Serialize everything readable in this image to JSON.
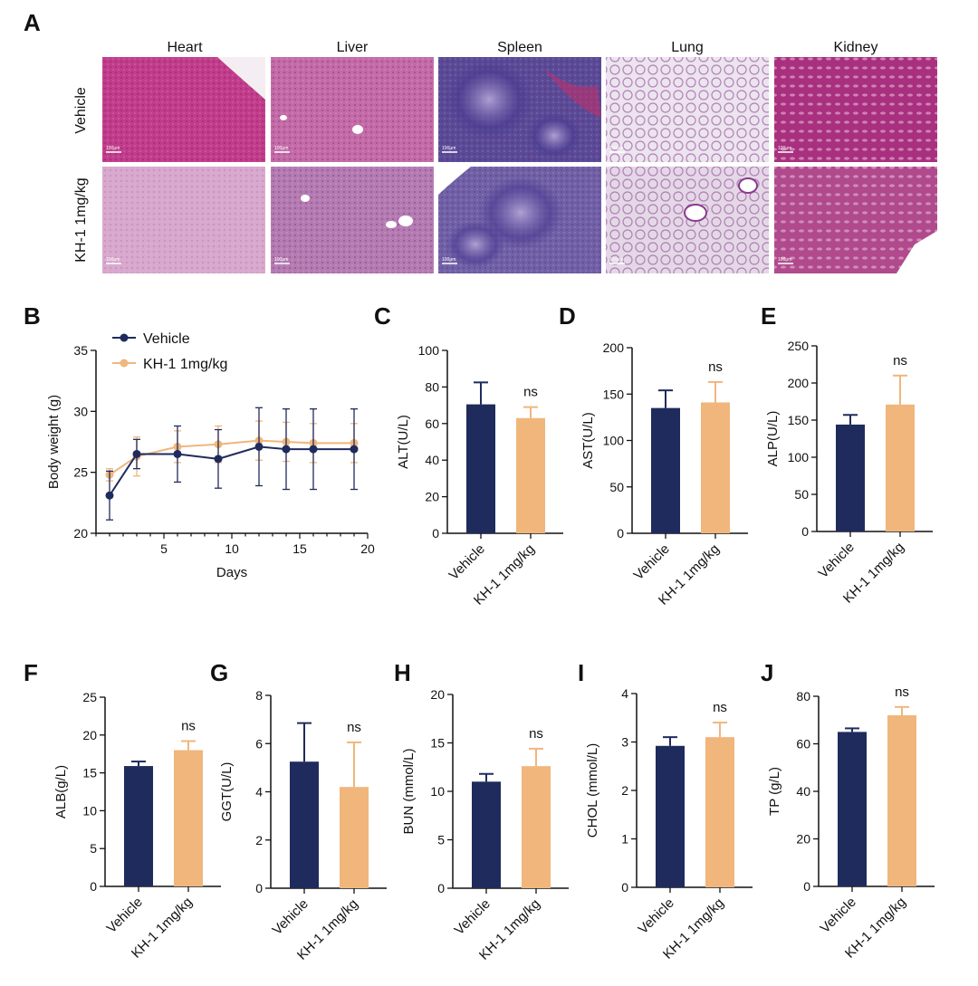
{
  "panel_labels": [
    "A",
    "B",
    "C",
    "D",
    "E",
    "F",
    "G",
    "H",
    "I",
    "J"
  ],
  "histology": {
    "columns": [
      "Heart",
      "Liver",
      "Spleen",
      "Lung",
      "Kidney"
    ],
    "rows": [
      "Vehicle",
      "KH-1 1mg/kg"
    ],
    "scale_bar": "100μm",
    "tile_colors": {
      "Heart": [
        "#c23c8c",
        "#d9a8cf"
      ],
      "Liver": [
        "#c46aa8",
        "#b47ab2"
      ],
      "Spleen": [
        "#5a4a98",
        "#7060a8"
      ],
      "Lung": [
        "#ece4ee",
        "#e4d8e6"
      ],
      "Kidney": [
        "#a8307e",
        "#b04a8c"
      ]
    }
  },
  "colors": {
    "vehicle": "#1f2b5c",
    "kh1": "#f0b67c"
  },
  "chart_data": [
    {
      "id": "B",
      "type": "line",
      "xlabel": "Days",
      "ylabel": "Body weight (g)",
      "xlim": [
        0,
        20
      ],
      "ylim": [
        20,
        35
      ],
      "xticks": [
        5,
        10,
        15,
        20
      ],
      "yticks": [
        20,
        25,
        30,
        35
      ],
      "x": [
        1,
        3,
        6,
        9,
        12,
        14,
        16,
        19
      ],
      "series": [
        {
          "name": "Vehicle",
          "values": [
            23.1,
            26.5,
            26.5,
            26.1,
            27.1,
            26.9,
            26.9,
            26.9
          ],
          "errors": [
            2.0,
            1.2,
            2.3,
            2.4,
            3.2,
            3.3,
            3.3,
            3.3
          ]
        },
        {
          "name": "KH-1 1mg/kg",
          "values": [
            24.8,
            26.3,
            27.1,
            27.3,
            27.6,
            27.5,
            27.4,
            27.4
          ],
          "errors": [
            0.5,
            1.6,
            1.3,
            1.5,
            1.6,
            1.6,
            1.6,
            1.6
          ]
        }
      ],
      "legend": "top-left"
    },
    {
      "id": "C",
      "type": "bar",
      "ylabel": "ALT(U/L)",
      "ylim": [
        0,
        100
      ],
      "yticks": [
        0,
        20,
        40,
        60,
        80,
        100
      ],
      "categories": [
        "Vehicle",
        "KH-1 1mg/kg"
      ],
      "values": [
        70.5,
        63
      ],
      "errors": [
        12,
        6
      ],
      "annotation": "ns"
    },
    {
      "id": "D",
      "type": "bar",
      "ylabel": "AST(U/L)",
      "ylim": [
        0,
        200
      ],
      "yticks": [
        0,
        50,
        100,
        150,
        200
      ],
      "categories": [
        "Vehicle",
        "KH-1 1mg/kg"
      ],
      "values": [
        135,
        141
      ],
      "errors": [
        19,
        22
      ],
      "annotation": "ns"
    },
    {
      "id": "E",
      "type": "bar",
      "ylabel": "ALP(U/L)",
      "ylim": [
        0,
        250
      ],
      "yticks": [
        0,
        50,
        100,
        150,
        200,
        250
      ],
      "categories": [
        "Vehicle",
        "KH-1 1mg/kg"
      ],
      "values": [
        144,
        171
      ],
      "errors": [
        13,
        39
      ],
      "annotation": "ns"
    },
    {
      "id": "F",
      "type": "bar",
      "ylabel": "ALB(g/L)",
      "ylim": [
        0,
        25
      ],
      "yticks": [
        0,
        5,
        10,
        15,
        20,
        25
      ],
      "categories": [
        "Vehicle",
        "KH-1 1mg/kg"
      ],
      "values": [
        15.9,
        18
      ],
      "errors": [
        0.6,
        1.2
      ],
      "annotation": "ns"
    },
    {
      "id": "G",
      "type": "bar",
      "ylabel": "GGT(U/L)",
      "ylim": [
        0,
        8
      ],
      "yticks": [
        0,
        2,
        4,
        6,
        8
      ],
      "categories": [
        "Vehicle",
        "KH-1 1mg/kg"
      ],
      "values": [
        5.25,
        4.2
      ],
      "errors": [
        1.6,
        1.85
      ],
      "annotation": "ns"
    },
    {
      "id": "H",
      "type": "bar",
      "ylabel": "BUN (mmol/L)",
      "ylim": [
        0,
        20
      ],
      "yticks": [
        0,
        5,
        10,
        15,
        20
      ],
      "categories": [
        "Vehicle",
        "KH-1 1mg/kg"
      ],
      "values": [
        11,
        12.6
      ],
      "errors": [
        0.8,
        1.8
      ],
      "annotation": "ns"
    },
    {
      "id": "I",
      "type": "bar",
      "ylabel": "CHOL (mmol/L)",
      "ylim": [
        0,
        4
      ],
      "yticks": [
        0,
        1,
        2,
        3,
        4
      ],
      "categories": [
        "Vehicle",
        "KH-1 1mg/kg"
      ],
      "values": [
        2.92,
        3.1
      ],
      "errors": [
        0.18,
        0.3
      ],
      "annotation": "ns"
    },
    {
      "id": "J",
      "type": "bar",
      "ylabel": "TP (g/L)",
      "ylim": [
        0,
        80
      ],
      "yticks": [
        0,
        20,
        40,
        60,
        80
      ],
      "categories": [
        "Vehicle",
        "KH-1 1mg/kg"
      ],
      "values": [
        65,
        72
      ],
      "errors": [
        1.5,
        3.5
      ],
      "annotation": "ns"
    }
  ]
}
